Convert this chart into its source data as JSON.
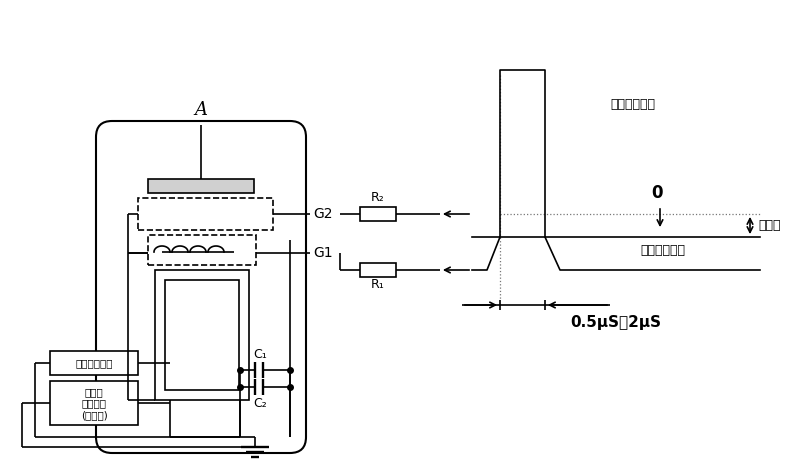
{
  "bg_color": "#ffffff",
  "lc": "#000000",
  "lw": 1.2,
  "title_label": "A",
  "G2_label": "G2",
  "G1_label": "G1",
  "R2_label": "R₂",
  "R1_label": "R₁",
  "C1_label": "C₁",
  "C2_label": "C₂",
  "box1_label": "阴极加热电源",
  "box2_line1": "储氢器",
  "box2_line2": "加热电源",
  "box2_line3": "(可调节)",
  "pulse2_label": "二模脆冲电压",
  "pulse1_label": "一模脆冲电流",
  "zero_label": "0",
  "bias_label": "负偏压",
  "time_label": "0.5μS－2μS"
}
